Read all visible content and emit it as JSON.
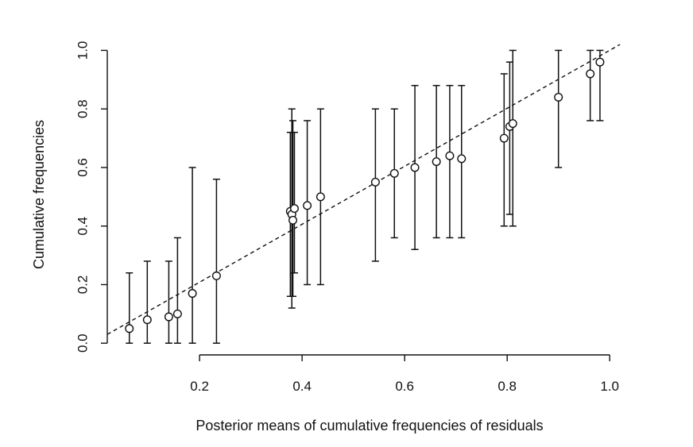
{
  "chart_data": {
    "type": "scatter",
    "title": "",
    "xlabel": "Posterior means of cumulative frequencies of residuals",
    "ylabel": "Cumulative frequencies",
    "xlim": [
      0.02,
      1.04
    ],
    "ylim": [
      -0.04,
      1.05
    ],
    "xticks": [
      "0.2",
      "0.4",
      "0.6",
      "0.8",
      "1.0"
    ],
    "yticks": [
      "0.0",
      "0.2",
      "0.4",
      "0.6",
      "0.8",
      "1.0"
    ],
    "grid": false,
    "reference_line": {
      "style": "dashed",
      "x": [
        0.02,
        1.02
      ],
      "y": [
        0.03,
        1.02
      ]
    },
    "points": [
      {
        "x": 0.063,
        "y": 0.05,
        "lo": 0.0,
        "hi": 0.24
      },
      {
        "x": 0.098,
        "y": 0.08,
        "lo": 0.0,
        "hi": 0.28
      },
      {
        "x": 0.14,
        "y": 0.09,
        "lo": 0.0,
        "hi": 0.28
      },
      {
        "x": 0.157,
        "y": 0.1,
        "lo": 0.0,
        "hi": 0.36
      },
      {
        "x": 0.186,
        "y": 0.17,
        "lo": 0.0,
        "hi": 0.6
      },
      {
        "x": 0.233,
        "y": 0.23,
        "lo": 0.0,
        "hi": 0.56
      },
      {
        "x": 0.377,
        "y": 0.45,
        "lo": 0.16,
        "hi": 0.72
      },
      {
        "x": 0.38,
        "y": 0.44,
        "lo": 0.12,
        "hi": 0.8
      },
      {
        "x": 0.382,
        "y": 0.42,
        "lo": 0.16,
        "hi": 0.76
      },
      {
        "x": 0.385,
        "y": 0.46,
        "lo": 0.24,
        "hi": 0.72
      },
      {
        "x": 0.41,
        "y": 0.47,
        "lo": 0.2,
        "hi": 0.76
      },
      {
        "x": 0.436,
        "y": 0.5,
        "lo": 0.2,
        "hi": 0.8
      },
      {
        "x": 0.543,
        "y": 0.55,
        "lo": 0.28,
        "hi": 0.8
      },
      {
        "x": 0.58,
        "y": 0.58,
        "lo": 0.36,
        "hi": 0.8
      },
      {
        "x": 0.62,
        "y": 0.6,
        "lo": 0.32,
        "hi": 0.88
      },
      {
        "x": 0.662,
        "y": 0.62,
        "lo": 0.36,
        "hi": 0.88
      },
      {
        "x": 0.688,
        "y": 0.64,
        "lo": 0.36,
        "hi": 0.88
      },
      {
        "x": 0.711,
        "y": 0.63,
        "lo": 0.36,
        "hi": 0.88
      },
      {
        "x": 0.794,
        "y": 0.7,
        "lo": 0.4,
        "hi": 0.92
      },
      {
        "x": 0.805,
        "y": 0.74,
        "lo": 0.44,
        "hi": 0.96
      },
      {
        "x": 0.811,
        "y": 0.75,
        "lo": 0.4,
        "hi": 1.0
      },
      {
        "x": 0.9,
        "y": 0.84,
        "lo": 0.6,
        "hi": 1.0
      },
      {
        "x": 0.962,
        "y": 0.92,
        "lo": 0.76,
        "hi": 1.0
      },
      {
        "x": 0.981,
        "y": 0.96,
        "lo": 0.76,
        "hi": 1.0
      }
    ]
  }
}
